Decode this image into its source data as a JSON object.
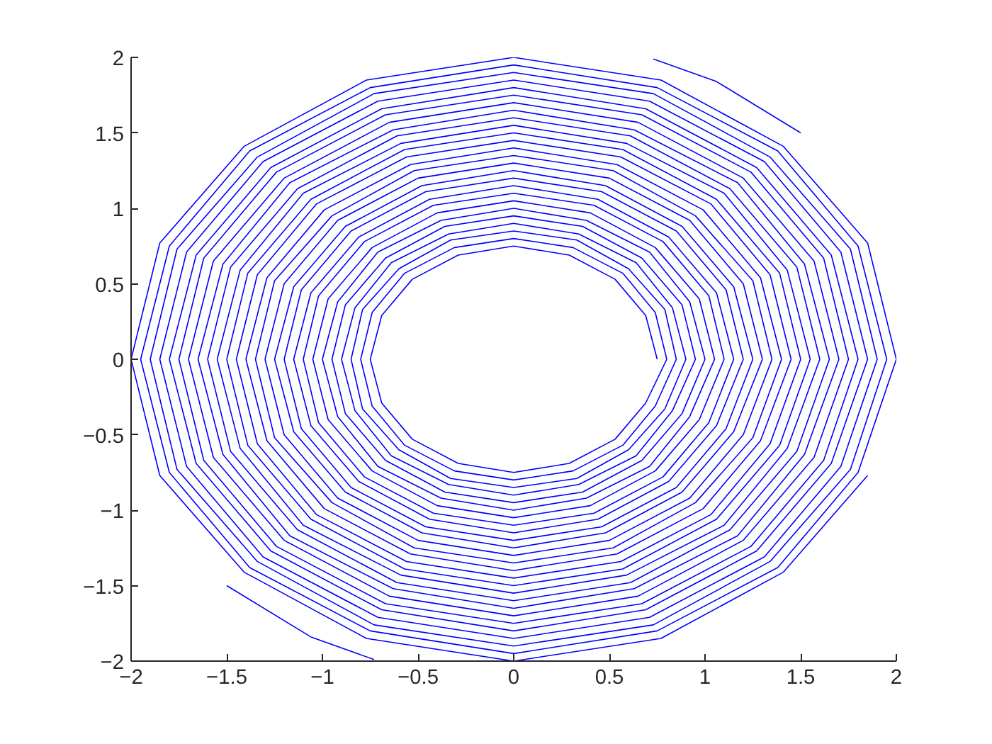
{
  "chart_data": {
    "type": "line",
    "xlim": [
      -2,
      2
    ],
    "ylim": [
      -2,
      2
    ],
    "xticks": [
      -2,
      -1.5,
      -1,
      -0.5,
      0,
      0.5,
      1,
      1.5,
      2
    ],
    "yticks": [
      -2,
      -1.5,
      -1,
      -0.5,
      0,
      0.5,
      1,
      1.5,
      2
    ],
    "grid": false,
    "line_style": "solid",
    "series": [
      {
        "color": "#0000ff",
        "x": [
          -0.75,
          -0.69,
          -0.53,
          -0.29,
          0,
          0.29,
          0.53,
          0.69,
          0.75
        ],
        "values": [
          0,
          0.29,
          0.53,
          0.69,
          0.75,
          0.69,
          0.53,
          0.29,
          0
        ]
      },
      {
        "color": "#0000ff",
        "x": [
          -0.75,
          -0.69,
          -0.53,
          -0.29,
          0,
          0.29,
          0.53,
          0.69,
          0.8
        ],
        "values": [
          0,
          -0.29,
          -0.53,
          -0.69,
          -0.75,
          -0.69,
          -0.53,
          -0.29,
          0
        ]
      },
      {
        "color": "#0000ff",
        "x": [
          -0.8,
          -0.74,
          -0.57,
          -0.31,
          0,
          0.31,
          0.57,
          0.74,
          0.8
        ],
        "values": [
          0,
          0.31,
          0.57,
          0.74,
          0.8,
          0.74,
          0.57,
          0.31,
          0
        ]
      },
      {
        "color": "#0000ff",
        "x": [
          -0.8,
          -0.74,
          -0.57,
          -0.31,
          0,
          0.31,
          0.57,
          0.74,
          0.85
        ],
        "values": [
          0,
          -0.31,
          -0.57,
          -0.74,
          -0.8,
          -0.74,
          -0.57,
          -0.31,
          0
        ]
      },
      {
        "color": "#0000ff",
        "x": [
          -0.85,
          -0.79,
          -0.6,
          -0.33,
          0,
          0.33,
          0.6,
          0.79,
          0.85
        ],
        "values": [
          0,
          0.33,
          0.6,
          0.79,
          0.85,
          0.79,
          0.6,
          0.33,
          0
        ]
      },
      {
        "color": "#0000ff",
        "x": [
          -0.85,
          -0.79,
          -0.6,
          -0.33,
          0,
          0.33,
          0.6,
          0.79,
          0.9
        ],
        "values": [
          0,
          -0.33,
          -0.6,
          -0.79,
          -0.85,
          -0.79,
          -0.6,
          -0.33,
          0
        ]
      },
      {
        "color": "#0000ff",
        "x": [
          -0.9,
          -0.83,
          -0.64,
          -0.34,
          0,
          0.34,
          0.64,
          0.83,
          0.9
        ],
        "values": [
          0,
          0.34,
          0.64,
          0.83,
          0.9,
          0.83,
          0.64,
          0.34,
          0
        ]
      },
      {
        "color": "#0000ff",
        "x": [
          -0.9,
          -0.83,
          -0.64,
          -0.34,
          0,
          0.34,
          0.64,
          0.83,
          0.95
        ],
        "values": [
          0,
          -0.34,
          -0.64,
          -0.83,
          -0.9,
          -0.83,
          -0.64,
          -0.34,
          0
        ]
      },
      {
        "color": "#0000ff",
        "x": [
          -0.95,
          -0.88,
          -0.67,
          -0.36,
          0,
          0.36,
          0.67,
          0.88,
          0.95
        ],
        "values": [
          0,
          0.36,
          0.67,
          0.88,
          0.95,
          0.88,
          0.67,
          0.36,
          0
        ]
      },
      {
        "color": "#0000ff",
        "x": [
          -0.95,
          -0.88,
          -0.67,
          -0.36,
          0,
          0.36,
          0.67,
          0.88,
          1
        ],
        "values": [
          0,
          -0.36,
          -0.67,
          -0.88,
          -0.95,
          -0.88,
          -0.67,
          -0.36,
          0
        ]
      },
      {
        "color": "#0000ff",
        "x": [
          -1,
          -0.92,
          -0.71,
          -0.38,
          0,
          0.38,
          0.71,
          0.92,
          1
        ],
        "values": [
          0,
          0.38,
          0.71,
          0.92,
          1,
          0.92,
          0.71,
          0.38,
          0
        ]
      },
      {
        "color": "#0000ff",
        "x": [
          -1,
          -0.92,
          -0.71,
          -0.38,
          0,
          0.38,
          0.71,
          0.92,
          1.05
        ],
        "values": [
          0,
          -0.38,
          -0.71,
          -0.92,
          -1,
          -0.92,
          -0.71,
          -0.38,
          0
        ]
      },
      {
        "color": "#0000ff",
        "x": [
          -1.05,
          -0.97,
          -0.74,
          -0.4,
          0,
          0.4,
          0.74,
          0.97,
          1.05
        ],
        "values": [
          0,
          0.4,
          0.74,
          0.97,
          1.05,
          0.97,
          0.74,
          0.4,
          0
        ]
      },
      {
        "color": "#0000ff",
        "x": [
          -1.05,
          -0.97,
          -0.74,
          -0.4,
          0,
          0.4,
          0.74,
          0.97,
          1.1
        ],
        "values": [
          0,
          -0.4,
          -0.74,
          -0.97,
          -1.05,
          -0.97,
          -0.74,
          -0.4,
          0
        ]
      },
      {
        "color": "#0000ff",
        "x": [
          -1.1,
          -1.02,
          -0.78,
          -0.42,
          0,
          0.42,
          0.78,
          1.02,
          1.1
        ],
        "values": [
          0,
          0.42,
          0.78,
          1.02,
          1.1,
          1.02,
          0.78,
          0.42,
          0
        ]
      },
      {
        "color": "#0000ff",
        "x": [
          -1.1,
          -1.02,
          -0.78,
          -0.42,
          0,
          0.42,
          0.78,
          1.02,
          1.15
        ],
        "values": [
          0,
          -0.42,
          -0.78,
          -1.02,
          -1.1,
          -1.02,
          -0.78,
          -0.42,
          0
        ]
      },
      {
        "color": "#0000ff",
        "x": [
          -1.15,
          -1.06,
          -0.81,
          -0.44,
          0,
          0.44,
          0.81,
          1.06,
          1.15
        ],
        "values": [
          0,
          0.44,
          0.81,
          1.06,
          1.15,
          1.06,
          0.81,
          0.44,
          0
        ]
      },
      {
        "color": "#0000ff",
        "x": [
          -1.15,
          -1.06,
          -0.81,
          -0.44,
          0,
          0.44,
          0.81,
          1.06,
          1.2
        ],
        "values": [
          0,
          -0.44,
          -0.81,
          -1.06,
          -1.15,
          -1.06,
          -0.81,
          -0.44,
          0
        ]
      },
      {
        "color": "#0000ff",
        "x": [
          -1.2,
          -1.11,
          -0.85,
          -0.46,
          0,
          0.46,
          0.85,
          1.11,
          1.2
        ],
        "values": [
          0,
          0.46,
          0.85,
          1.11,
          1.2,
          1.11,
          0.85,
          0.46,
          0
        ]
      },
      {
        "color": "#0000ff",
        "x": [
          -1.2,
          -1.11,
          -0.85,
          -0.46,
          0,
          0.46,
          0.85,
          1.11,
          1.25
        ],
        "values": [
          0,
          -0.46,
          -0.85,
          -1.11,
          -1.2,
          -1.11,
          -0.85,
          -0.46,
          0
        ]
      },
      {
        "color": "#0000ff",
        "x": [
          -1.25,
          -1.15,
          -0.88,
          -0.48,
          0,
          0.48,
          0.88,
          1.15,
          1.25
        ],
        "values": [
          0,
          0.48,
          0.88,
          1.15,
          1.25,
          1.15,
          0.88,
          0.48,
          0
        ]
      },
      {
        "color": "#0000ff",
        "x": [
          -1.25,
          -1.15,
          -0.88,
          -0.48,
          0,
          0.48,
          0.88,
          1.15,
          1.3
        ],
        "values": [
          0,
          -0.48,
          -0.88,
          -1.15,
          -1.25,
          -1.15,
          -0.88,
          -0.48,
          0
        ]
      },
      {
        "color": "#0000ff",
        "x": [
          -1.3,
          -1.2,
          -0.92,
          -0.5,
          0,
          0.5,
          0.92,
          1.2,
          1.3
        ],
        "values": [
          0,
          0.5,
          0.92,
          1.2,
          1.3,
          1.2,
          0.92,
          0.5,
          0
        ]
      },
      {
        "color": "#0000ff",
        "x": [
          -1.3,
          -1.2,
          -0.92,
          -0.5,
          0,
          0.5,
          0.92,
          1.2,
          1.35
        ],
        "values": [
          0,
          -0.5,
          -0.92,
          -1.2,
          -1.3,
          -1.2,
          -0.92,
          -0.5,
          0
        ]
      },
      {
        "color": "#0000ff",
        "x": [
          -1.35,
          -1.25,
          -0.95,
          -0.52,
          0,
          0.52,
          0.95,
          1.25,
          1.35
        ],
        "values": [
          0,
          0.52,
          0.95,
          1.25,
          1.35,
          1.25,
          0.95,
          0.52,
          0
        ]
      },
      {
        "color": "#0000ff",
        "x": [
          -1.35,
          -1.25,
          -0.95,
          -0.52,
          0,
          0.52,
          0.95,
          1.25,
          1.4
        ],
        "values": [
          0,
          -0.52,
          -0.95,
          -1.25,
          -1.35,
          -1.25,
          -0.95,
          -0.52,
          0
        ]
      },
      {
        "color": "#0000ff",
        "x": [
          -1.4,
          -1.29,
          -0.99,
          -0.54,
          0,
          0.54,
          0.99,
          1.29,
          1.4
        ],
        "values": [
          0,
          0.54,
          0.99,
          1.29,
          1.4,
          1.29,
          0.99,
          0.54,
          0
        ]
      },
      {
        "color": "#0000ff",
        "x": [
          -1.4,
          -1.29,
          -0.99,
          -0.54,
          0,
          0.54,
          0.99,
          1.29,
          1.45
        ],
        "values": [
          0,
          -0.54,
          -0.99,
          -1.29,
          -1.4,
          -1.29,
          -0.99,
          -0.54,
          0
        ]
      },
      {
        "color": "#0000ff",
        "x": [
          -1.45,
          -1.34,
          -1.03,
          -0.56,
          0,
          0.56,
          1.03,
          1.34,
          1.45
        ],
        "values": [
          0,
          0.56,
          1.03,
          1.34,
          1.45,
          1.34,
          1.03,
          0.56,
          0
        ]
      },
      {
        "color": "#0000ff",
        "x": [
          -1.45,
          -1.34,
          -1.03,
          -0.56,
          0,
          0.56,
          1.03,
          1.34,
          1.5
        ],
        "values": [
          0,
          -0.56,
          -1.03,
          -1.34,
          -1.45,
          -1.34,
          -1.03,
          -0.56,
          0
        ]
      },
      {
        "color": "#0000ff",
        "x": [
          -1.5,
          -1.39,
          -1.06,
          -0.57,
          0,
          0.57,
          1.06,
          1.39,
          1.5
        ],
        "values": [
          0,
          0.57,
          1.06,
          1.39,
          1.5,
          1.39,
          1.06,
          0.57,
          0
        ]
      },
      {
        "color": "#0000ff",
        "x": [
          -1.5,
          -1.39,
          -1.06,
          -0.57,
          0,
          0.57,
          1.06,
          1.39,
          1.55
        ],
        "values": [
          0,
          -0.57,
          -1.06,
          -1.39,
          -1.5,
          -1.39,
          -1.06,
          -0.57,
          0
        ]
      },
      {
        "color": "#0000ff",
        "x": [
          -1.55,
          -1.43,
          -1.1,
          -0.59,
          0,
          0.59,
          1.1,
          1.43,
          1.55
        ],
        "values": [
          0,
          0.59,
          1.1,
          1.43,
          1.55,
          1.43,
          1.1,
          0.59,
          0
        ]
      },
      {
        "color": "#0000ff",
        "x": [
          -1.55,
          -1.43,
          -1.1,
          -0.59,
          0,
          0.59,
          1.1,
          1.43,
          1.6
        ],
        "values": [
          0,
          -0.59,
          -1.1,
          -1.43,
          -1.55,
          -1.43,
          -1.1,
          -0.59,
          0
        ]
      },
      {
        "color": "#0000ff",
        "x": [
          -1.6,
          -1.48,
          -1.13,
          -0.61,
          0,
          0.61,
          1.13,
          1.48,
          1.6
        ],
        "values": [
          0,
          0.61,
          1.13,
          1.48,
          1.6,
          1.48,
          1.13,
          0.61,
          0
        ]
      },
      {
        "color": "#0000ff",
        "x": [
          -1.6,
          -1.48,
          -1.13,
          -0.61,
          0,
          0.61,
          1.13,
          1.48,
          1.65
        ],
        "values": [
          0,
          -0.61,
          -1.13,
          -1.48,
          -1.6,
          -1.48,
          -1.13,
          -0.61,
          0
        ]
      },
      {
        "color": "#0000ff",
        "x": [
          -1.65,
          -1.52,
          -1.17,
          -0.63,
          0,
          0.63,
          1.17,
          1.52,
          1.65
        ],
        "values": [
          0,
          0.63,
          1.17,
          1.52,
          1.65,
          1.52,
          1.17,
          0.63,
          0
        ]
      },
      {
        "color": "#0000ff",
        "x": [
          -1.65,
          -1.52,
          -1.17,
          -0.63,
          0,
          0.63,
          1.17,
          1.52,
          1.7
        ],
        "values": [
          0,
          -0.63,
          -1.17,
          -1.52,
          -1.65,
          -1.52,
          -1.17,
          -0.63,
          0
        ]
      },
      {
        "color": "#0000ff",
        "x": [
          -1.7,
          -1.57,
          -1.2,
          -0.65,
          0,
          0.65,
          1.2,
          1.57,
          1.7
        ],
        "values": [
          0,
          0.65,
          1.2,
          1.57,
          1.7,
          1.57,
          1.2,
          0.65,
          0
        ]
      },
      {
        "color": "#0000ff",
        "x": [
          -1.7,
          -1.57,
          -1.2,
          -0.65,
          0,
          0.65,
          1.2,
          1.57,
          1.75
        ],
        "values": [
          0,
          -0.65,
          -1.2,
          -1.57,
          -1.7,
          -1.57,
          -1.2,
          -0.65,
          0
        ]
      },
      {
        "color": "#0000ff",
        "x": [
          -1.75,
          -1.62,
          -1.24,
          -0.67,
          0,
          0.67,
          1.24,
          1.62,
          1.75
        ],
        "values": [
          0,
          0.67,
          1.24,
          1.62,
          1.75,
          1.62,
          1.24,
          0.67,
          0
        ]
      },
      {
        "color": "#0000ff",
        "x": [
          -1.75,
          -1.62,
          -1.24,
          -0.67,
          0,
          0.67,
          1.24,
          1.62,
          1.8
        ],
        "values": [
          0,
          -0.67,
          -1.24,
          -1.62,
          -1.75,
          -1.62,
          -1.24,
          -0.67,
          0
        ]
      },
      {
        "color": "#0000ff",
        "x": [
          -1.8,
          -1.66,
          -1.27,
          -0.69,
          0,
          0.69,
          1.27,
          1.66,
          1.8
        ],
        "values": [
          0,
          0.69,
          1.27,
          1.66,
          1.8,
          1.66,
          1.27,
          0.69,
          0
        ]
      },
      {
        "color": "#0000ff",
        "x": [
          -1.8,
          -1.66,
          -1.27,
          -0.69,
          0,
          0.69,
          1.27,
          1.66,
          1.85
        ],
        "values": [
          0,
          -0.69,
          -1.27,
          -1.66,
          -1.8,
          -1.66,
          -1.27,
          -0.69,
          0
        ]
      },
      {
        "color": "#0000ff",
        "x": [
          -1.85,
          -1.71,
          -1.31,
          -0.71,
          0,
          0.71,
          1.31,
          1.71,
          1.85
        ],
        "values": [
          0,
          0.71,
          1.31,
          1.71,
          1.85,
          1.71,
          1.31,
          0.71,
          0
        ]
      },
      {
        "color": "#0000ff",
        "x": [
          -1.85,
          -1.71,
          -1.31,
          -0.71,
          0,
          0.71,
          1.31,
          1.71,
          1.9
        ],
        "values": [
          0,
          -0.71,
          -1.31,
          -1.71,
          -1.85,
          -1.71,
          -1.31,
          -0.71,
          0
        ]
      },
      {
        "color": "#0000ff",
        "x": [
          -1.9,
          -1.76,
          -1.34,
          -0.73,
          0,
          0.73,
          1.34,
          1.76,
          1.9
        ],
        "values": [
          0,
          0.73,
          1.34,
          1.76,
          1.9,
          1.76,
          1.34,
          0.73,
          0
        ]
      },
      {
        "color": "#0000ff",
        "x": [
          -1.9,
          -1.76,
          -1.34,
          -0.73,
          0,
          0.73,
          1.34,
          1.76,
          1.95
        ],
        "values": [
          0,
          -0.73,
          -1.34,
          -1.76,
          -1.9,
          -1.76,
          -1.34,
          -0.73,
          0
        ]
      },
      {
        "color": "#0000ff",
        "x": [
          -1.95,
          -1.8,
          -1.38,
          -0.75,
          0,
          0.75,
          1.38,
          1.8,
          1.95
        ],
        "values": [
          0,
          0.75,
          1.38,
          1.8,
          1.95,
          1.8,
          1.38,
          0.75,
          0
        ]
      },
      {
        "color": "#0000ff",
        "x": [
          -1.95,
          -1.8,
          -1.38,
          -0.75,
          0,
          0.75,
          1.38,
          1.8,
          2
        ],
        "values": [
          0,
          -0.75,
          -1.38,
          -1.8,
          -1.95,
          -1.8,
          -1.38,
          -0.75,
          0
        ]
      },
      {
        "color": "#0000ff",
        "x": [
          -2,
          -1.85,
          -1.41,
          -0.77,
          0,
          0.77,
          1.41,
          1.85,
          2
        ],
        "values": [
          0,
          0.77,
          1.41,
          1.85,
          2,
          1.85,
          1.41,
          0.77,
          0
        ]
      },
      {
        "color": "#0000ff",
        "x": [
          -2,
          -1.85,
          -1.41,
          -0.77,
          0,
          0.77,
          1.41,
          1.85
        ],
        "values": [
          0,
          -0.77,
          -1.41,
          -1.85,
          -2,
          -1.85,
          -1.41,
          -0.77
        ]
      },
      {
        "color": "#0000ff",
        "x": [
          0.73,
          1.06,
          1.5
        ],
        "values": [
          1.99,
          1.84,
          1.5
        ]
      },
      {
        "color": "#0000ff",
        "x": [
          -1.5,
          -1.06,
          -0.73
        ],
        "values": [
          -1.5,
          -1.84,
          -1.99
        ]
      }
    ]
  }
}
